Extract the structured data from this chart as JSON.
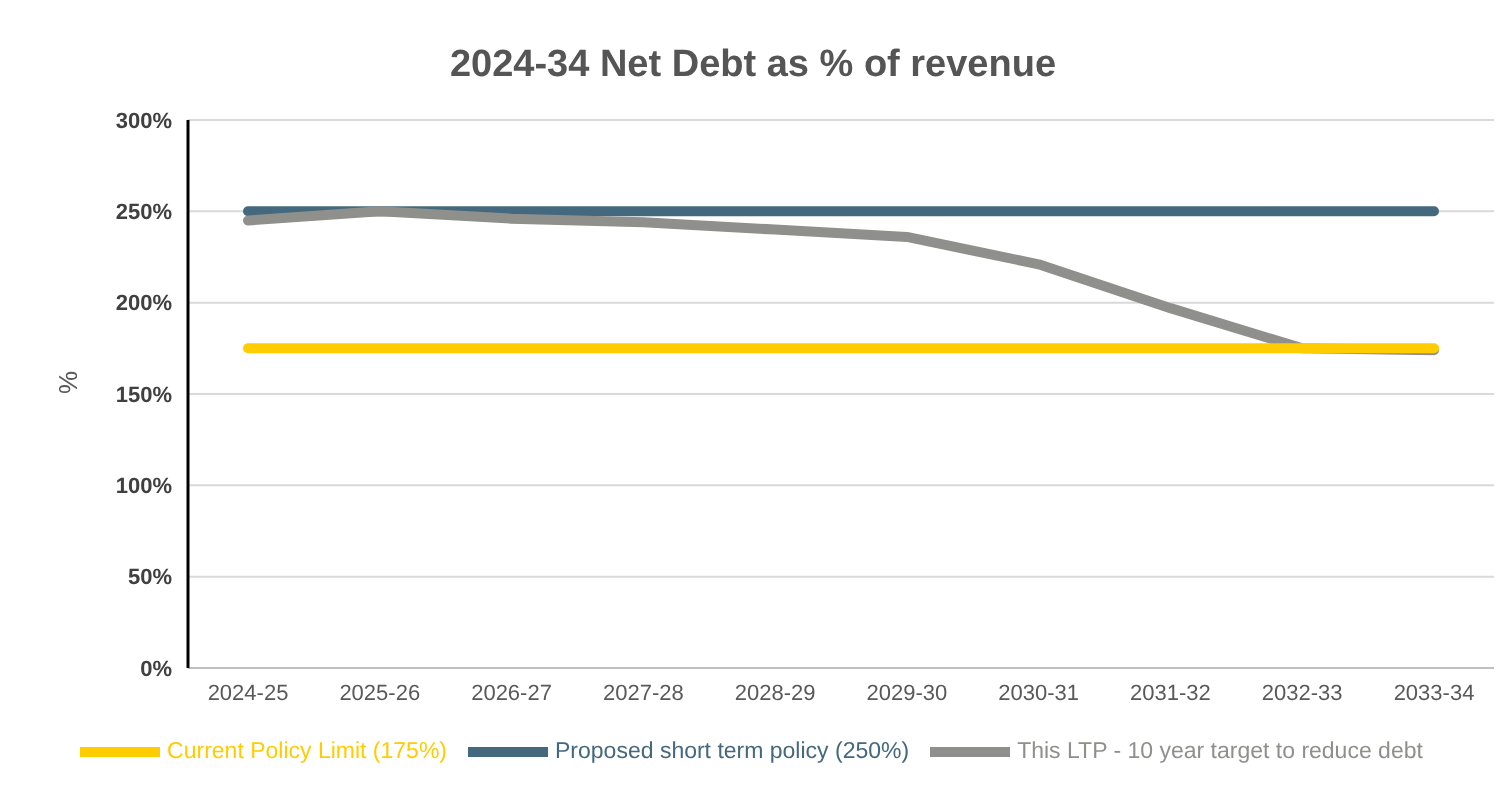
{
  "chart_data": {
    "type": "line",
    "title": "2024-34 Net Debt as % of revenue",
    "ylabel": "%",
    "categories": [
      "2024-25",
      "2025-26",
      "2026-27",
      "2027-28",
      "2028-29",
      "2029-30",
      "2030-31",
      "2031-32",
      "2032-33",
      "2033-34"
    ],
    "series": [
      {
        "name": "Proposed short term policy (250%)",
        "color": "#44687d",
        "values": [
          250,
          250,
          250,
          250,
          250,
          250,
          250,
          250,
          250,
          250
        ]
      },
      {
        "name": "This LTP - 10 year target to reduce debt",
        "color": "#8f8f8b",
        "values": [
          245,
          250,
          246,
          244,
          240,
          236,
          221,
          197,
          175,
          174
        ]
      },
      {
        "name": "Current Policy Limit (175%)",
        "color": "#ffcc00",
        "values": [
          175,
          175,
          175,
          175,
          175,
          175,
          175,
          175,
          175,
          175
        ]
      }
    ],
    "ylim": [
      0,
      300
    ],
    "yticks": [
      {
        "value": 0,
        "label": "0%"
      },
      {
        "value": 50,
        "label": "50%"
      },
      {
        "value": 100,
        "label": "100%"
      },
      {
        "value": 150,
        "label": "150%"
      },
      {
        "value": 200,
        "label": "200%"
      },
      {
        "value": 250,
        "label": "250%"
      },
      {
        "value": 300,
        "label": "300%"
      }
    ],
    "grid": "y",
    "legend": "bottom",
    "marker": "none",
    "line_style": "solid"
  }
}
